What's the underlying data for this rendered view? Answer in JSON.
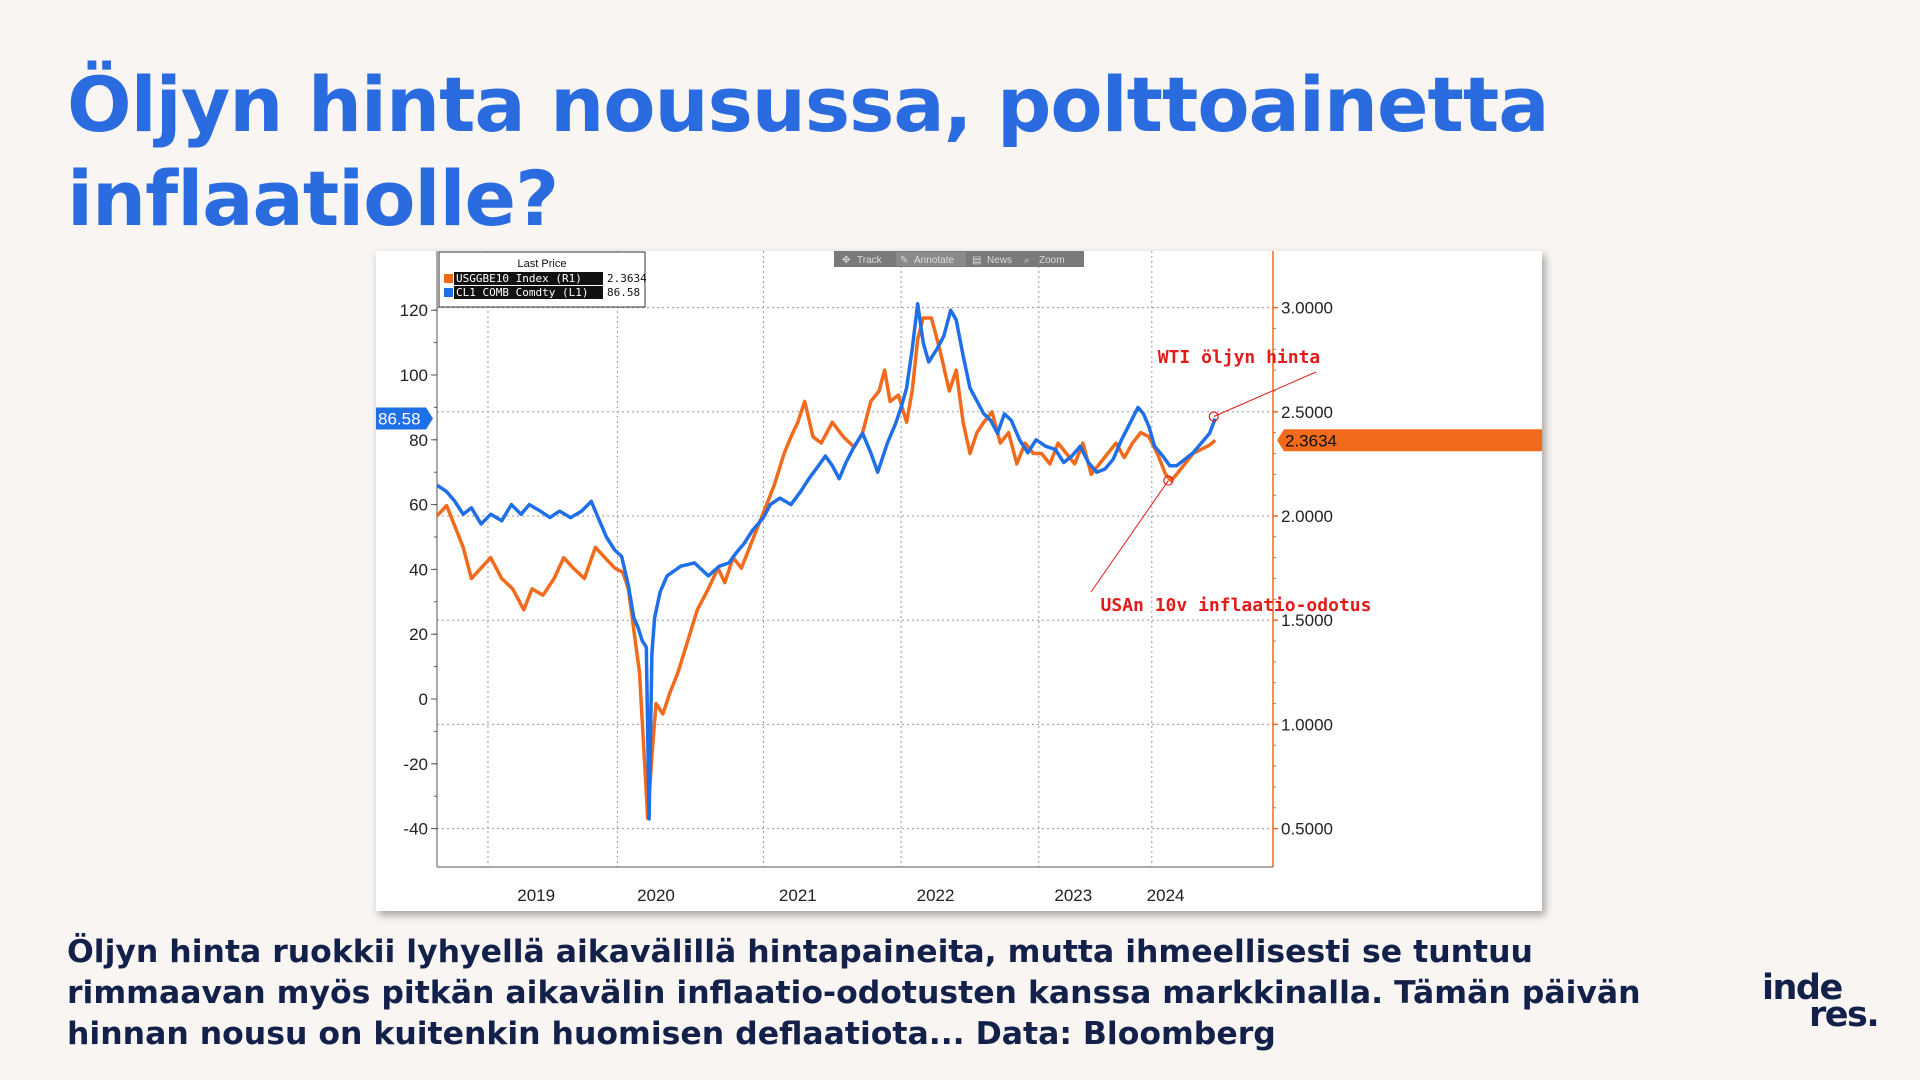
{
  "slide": {
    "title": "Öljyn hinta nousussa, polttoainetta inflaatiolle?",
    "caption": "Öljyn hinta ruokkii lyhyellä aikavälillä hintapaineita, mutta ihmeellisesti se tuntuu rimmaavan myös pitkän aikavälin inflaatio-odotusten kanssa markkinalla. Tämän päivän hinnan nousu on kuitenkin huomisen deflaatiota... Data: Bloomberg",
    "logo_line1": "inde",
    "logo_line2": "res."
  },
  "toolbar": {
    "track": "Track",
    "annotate": "Annotate",
    "news": "News",
    "zoom": "Zoom"
  },
  "colors": {
    "wti": "#1f6fe8",
    "breakeven": "#f26a1b",
    "annotation": "#e21b1b",
    "title": "#2a6be0",
    "text": "#13214a"
  },
  "chart_data": {
    "type": "line",
    "legend": {
      "header": "Last Price",
      "entries": [
        {
          "label": "USGGBE10 Index  (R1)",
          "value": "2.3634",
          "color": "#f26a1b"
        },
        {
          "label": "CL1 COMB Comdty  (L1)",
          "value": "86.58",
          "color": "#1f6fe8"
        }
      ],
      "placement": "top-left"
    },
    "x_ticks": [
      "2019",
      "2020",
      "2021",
      "2022",
      "2023",
      "2024"
    ],
    "x_tick_positions": [
      2019.0,
      2020.0,
      2021.0,
      2022.0,
      2023.0,
      2024.0
    ],
    "x_range": [
      2018.63,
      2024.7
    ],
    "y_left": {
      "ticks": [
        120,
        100,
        80,
        60,
        40,
        20,
        0,
        -20,
        -40
      ],
      "range": [
        -45,
        125
      ]
    },
    "y_right": {
      "ticks": [
        "3.0000",
        "2.5000",
        "2.0000",
        "1.5000",
        "1.0000",
        "0.5000"
      ],
      "tick_values": [
        3.0,
        2.5,
        2.0,
        1.5,
        1.0,
        0.5
      ],
      "range": [
        0.45,
        3.1
      ]
    },
    "last_value_labels": {
      "left": "86.58",
      "right": "2.3634"
    },
    "grid": true,
    "series": [
      {
        "name": "CL1 COMB Comdty (L1)",
        "axis": "left",
        "color": "#1f6fe8",
        "points": [
          [
            2018.63,
            66
          ],
          [
            2018.7,
            64
          ],
          [
            2018.76,
            61
          ],
          [
            2018.82,
            57
          ],
          [
            2018.88,
            59
          ],
          [
            2018.95,
            54
          ],
          [
            2019.02,
            57
          ],
          [
            2019.1,
            55
          ],
          [
            2019.17,
            60
          ],
          [
            2019.24,
            57
          ],
          [
            2019.3,
            60
          ],
          [
            2019.38,
            58
          ],
          [
            2019.45,
            56
          ],
          [
            2019.52,
            58
          ],
          [
            2019.6,
            56
          ],
          [
            2019.68,
            58
          ],
          [
            2019.75,
            61
          ],
          [
            2019.8,
            56
          ],
          [
            2019.86,
            50
          ],
          [
            2019.92,
            46
          ],
          [
            2019.97,
            44
          ],
          [
            2020.02,
            35
          ],
          [
            2020.06,
            25
          ],
          [
            2020.09,
            22
          ],
          [
            2020.12,
            18
          ],
          [
            2020.15,
            16
          ],
          [
            2020.17,
            -37
          ],
          [
            2020.19,
            14
          ],
          [
            2020.21,
            25
          ],
          [
            2020.25,
            33
          ],
          [
            2020.3,
            38
          ],
          [
            2020.4,
            41
          ],
          [
            2020.5,
            42
          ],
          [
            2020.55,
            40
          ],
          [
            2020.6,
            38
          ],
          [
            2020.68,
            41
          ],
          [
            2020.75,
            42
          ],
          [
            2020.8,
            45
          ],
          [
            2020.86,
            48
          ],
          [
            2020.92,
            52
          ],
          [
            2021.0,
            56
          ],
          [
            2021.05,
            60
          ],
          [
            2021.12,
            62
          ],
          [
            2021.2,
            60
          ],
          [
            2021.27,
            64
          ],
          [
            2021.33,
            68
          ],
          [
            2021.4,
            72
          ],
          [
            2021.45,
            75
          ],
          [
            2021.5,
            72
          ],
          [
            2021.55,
            68
          ],
          [
            2021.6,
            73
          ],
          [
            2021.66,
            78
          ],
          [
            2021.72,
            82
          ],
          [
            2021.78,
            76
          ],
          [
            2021.83,
            70
          ],
          [
            2021.9,
            79
          ],
          [
            2021.96,
            85
          ],
          [
            2022.0,
            90
          ],
          [
            2022.04,
            96
          ],
          [
            2022.08,
            108
          ],
          [
            2022.12,
            122
          ],
          [
            2022.16,
            110
          ],
          [
            2022.2,
            104
          ],
          [
            2022.26,
            108
          ],
          [
            2022.31,
            112
          ],
          [
            2022.36,
            120
          ],
          [
            2022.4,
            117
          ],
          [
            2022.45,
            106
          ],
          [
            2022.5,
            96
          ],
          [
            2022.55,
            92
          ],
          [
            2022.6,
            88
          ],
          [
            2022.65,
            86
          ],
          [
            2022.7,
            82
          ],
          [
            2022.75,
            88
          ],
          [
            2022.8,
            86
          ],
          [
            2022.86,
            80
          ],
          [
            2022.92,
            76
          ],
          [
            2022.98,
            80
          ],
          [
            2023.05,
            78
          ],
          [
            2023.12,
            77
          ],
          [
            2023.18,
            73
          ],
          [
            2023.24,
            75
          ],
          [
            2023.3,
            78
          ],
          [
            2023.36,
            73
          ],
          [
            2023.42,
            70
          ],
          [
            2023.48,
            71
          ],
          [
            2023.54,
            74
          ],
          [
            2023.6,
            80
          ],
          [
            2023.66,
            85
          ],
          [
            2023.72,
            90
          ],
          [
            2023.76,
            88
          ],
          [
            2023.8,
            84
          ],
          [
            2023.84,
            78
          ],
          [
            2023.9,
            75
          ],
          [
            2023.95,
            72
          ],
          [
            2024.0,
            72
          ],
          [
            2024.06,
            74
          ],
          [
            2024.12,
            76
          ],
          [
            2024.18,
            79
          ],
          [
            2024.24,
            82
          ],
          [
            2024.28,
            86.58
          ]
        ]
      },
      {
        "name": "USGGBE10 Index (R1)",
        "axis": "right",
        "color": "#f26a1b",
        "points": [
          [
            2018.63,
            2.0
          ],
          [
            2018.7,
            2.05
          ],
          [
            2018.76,
            1.95
          ],
          [
            2018.82,
            1.85
          ],
          [
            2018.88,
            1.7
          ],
          [
            2018.95,
            1.75
          ],
          [
            2019.02,
            1.8
          ],
          [
            2019.1,
            1.7
          ],
          [
            2019.18,
            1.65
          ],
          [
            2019.26,
            1.55
          ],
          [
            2019.32,
            1.65
          ],
          [
            2019.4,
            1.62
          ],
          [
            2019.48,
            1.7
          ],
          [
            2019.55,
            1.8
          ],
          [
            2019.62,
            1.75
          ],
          [
            2019.7,
            1.7
          ],
          [
            2019.78,
            1.85
          ],
          [
            2019.85,
            1.8
          ],
          [
            2019.92,
            1.75
          ],
          [
            2019.98,
            1.73
          ],
          [
            2020.02,
            1.65
          ],
          [
            2020.06,
            1.45
          ],
          [
            2020.1,
            1.25
          ],
          [
            2020.13,
            0.9
          ],
          [
            2020.16,
            0.55
          ],
          [
            2020.19,
            0.85
          ],
          [
            2020.22,
            1.1
          ],
          [
            2020.27,
            1.05
          ],
          [
            2020.32,
            1.15
          ],
          [
            2020.38,
            1.25
          ],
          [
            2020.45,
            1.4
          ],
          [
            2020.52,
            1.55
          ],
          [
            2020.6,
            1.65
          ],
          [
            2020.67,
            1.75
          ],
          [
            2020.72,
            1.68
          ],
          [
            2020.78,
            1.8
          ],
          [
            2020.84,
            1.75
          ],
          [
            2020.9,
            1.85
          ],
          [
            2020.96,
            1.95
          ],
          [
            2021.02,
            2.05
          ],
          [
            2021.08,
            2.15
          ],
          [
            2021.15,
            2.3
          ],
          [
            2021.2,
            2.38
          ],
          [
            2021.25,
            2.45
          ],
          [
            2021.3,
            2.55
          ],
          [
            2021.36,
            2.38
          ],
          [
            2021.42,
            2.35
          ],
          [
            2021.5,
            2.45
          ],
          [
            2021.58,
            2.38
          ],
          [
            2021.66,
            2.33
          ],
          [
            2021.72,
            2.4
          ],
          [
            2021.78,
            2.55
          ],
          [
            2021.84,
            2.6
          ],
          [
            2021.88,
            2.7
          ],
          [
            2021.92,
            2.55
          ],
          [
            2021.98,
            2.58
          ],
          [
            2022.04,
            2.45
          ],
          [
            2022.08,
            2.6
          ],
          [
            2022.12,
            2.85
          ],
          [
            2022.16,
            2.95
          ],
          [
            2022.22,
            2.95
          ],
          [
            2022.28,
            2.8
          ],
          [
            2022.35,
            2.6
          ],
          [
            2022.4,
            2.7
          ],
          [
            2022.45,
            2.45
          ],
          [
            2022.5,
            2.3
          ],
          [
            2022.55,
            2.4
          ],
          [
            2022.6,
            2.45
          ],
          [
            2022.66,
            2.5
          ],
          [
            2022.72,
            2.35
          ],
          [
            2022.78,
            2.4
          ],
          [
            2022.84,
            2.25
          ],
          [
            2022.9,
            2.35
          ],
          [
            2022.96,
            2.3
          ],
          [
            2023.02,
            2.3
          ],
          [
            2023.08,
            2.25
          ],
          [
            2023.14,
            2.35
          ],
          [
            2023.2,
            2.3
          ],
          [
            2023.26,
            2.25
          ],
          [
            2023.32,
            2.35
          ],
          [
            2023.38,
            2.2
          ],
          [
            2023.44,
            2.25
          ],
          [
            2023.5,
            2.3
          ],
          [
            2023.56,
            2.35
          ],
          [
            2023.62,
            2.28
          ],
          [
            2023.68,
            2.35
          ],
          [
            2023.74,
            2.4
          ],
          [
            2023.8,
            2.38
          ],
          [
            2023.86,
            2.3
          ],
          [
            2023.92,
            2.2
          ],
          [
            2023.96,
            2.17
          ],
          [
            2024.0,
            2.2
          ],
          [
            2024.06,
            2.25
          ],
          [
            2024.12,
            2.3
          ],
          [
            2024.18,
            2.32
          ],
          [
            2024.24,
            2.34
          ],
          [
            2024.28,
            2.3634
          ]
        ]
      }
    ],
    "annotations": [
      {
        "text": "WTI öljyn hinta",
        "target_series": "CL1 COMB Comdty (L1)",
        "target_x": 2024.27,
        "target_y": 86.58
      },
      {
        "text": "USAn 10v inflaatio-odotus",
        "target_series": "USGGBE10 Index (R1)",
        "target_x": 2023.94,
        "target_y": 2.17
      }
    ]
  }
}
